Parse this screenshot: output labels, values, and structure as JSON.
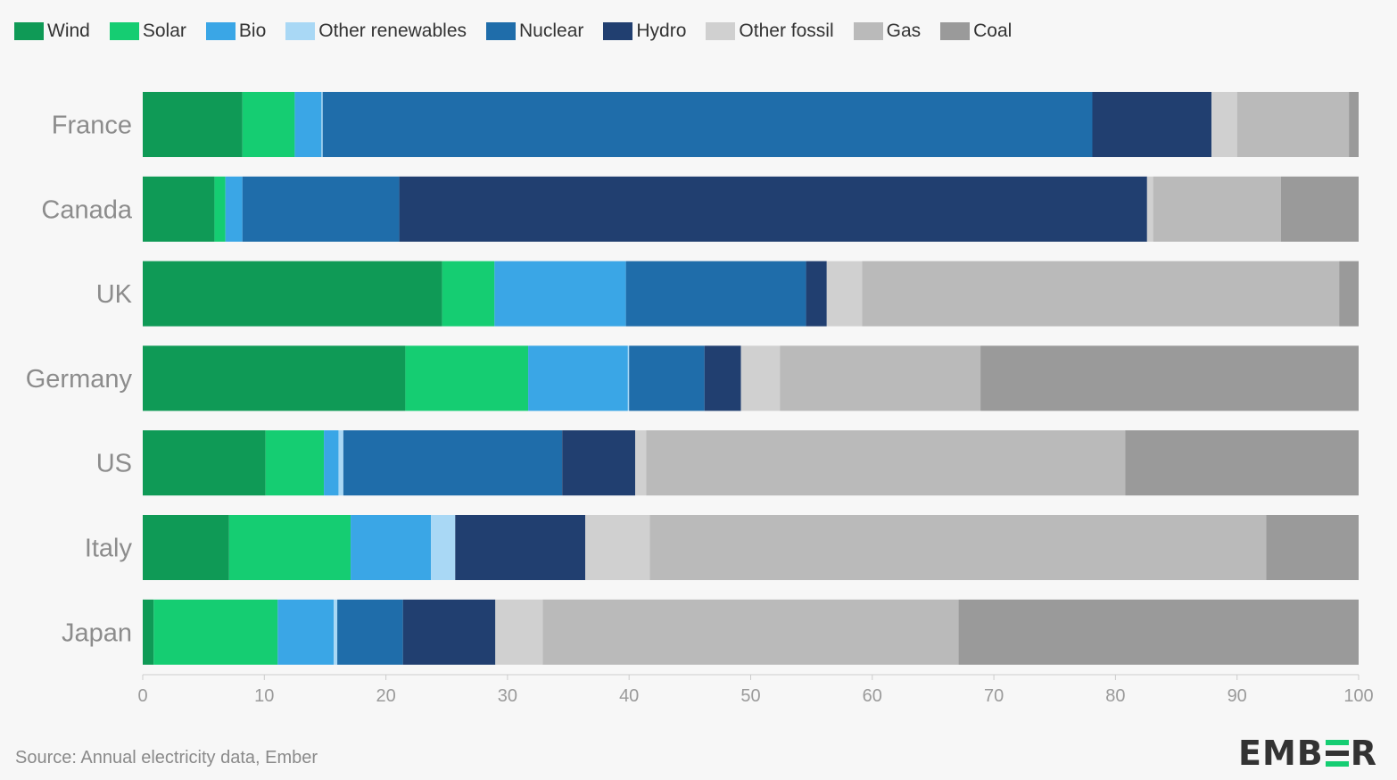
{
  "chart_data": {
    "type": "bar",
    "orientation": "horizontal",
    "stacked": true,
    "categories": [
      "France",
      "Canada",
      "UK",
      "Germany",
      "US",
      "Italy",
      "Japan"
    ],
    "series": [
      {
        "name": "Wind",
        "color": "#0f9a56",
        "values": [
          8.2,
          5.9,
          24.6,
          21.6,
          10.1,
          7.1,
          0.9
        ]
      },
      {
        "name": "Solar",
        "color": "#15cd72",
        "values": [
          4.3,
          0.9,
          4.3,
          10.1,
          4.8,
          10.0,
          10.2
        ]
      },
      {
        "name": "Bio",
        "color": "#3aa6e6",
        "values": [
          2.2,
          1.4,
          10.8,
          8.2,
          1.2,
          6.6,
          4.6
        ]
      },
      {
        "name": "Other renewables",
        "color": "#a9d8f5",
        "values": [
          0.1,
          0.0,
          0.0,
          0.1,
          0.4,
          2.0,
          0.3
        ]
      },
      {
        "name": "Nuclear",
        "color": "#1f6daa",
        "values": [
          63.3,
          12.9,
          14.8,
          6.2,
          18.0,
          0.0,
          5.4
        ]
      },
      {
        "name": "Hydro",
        "color": "#213f70",
        "values": [
          9.8,
          61.5,
          1.7,
          3.0,
          6.0,
          10.7,
          7.6
        ]
      },
      {
        "name": "Other fossil",
        "color": "#d0d0d0",
        "values": [
          2.1,
          0.5,
          2.9,
          3.2,
          0.9,
          5.3,
          3.9
        ]
      },
      {
        "name": "Gas",
        "color": "#bababa",
        "values": [
          9.2,
          10.5,
          39.2,
          16.5,
          39.4,
          50.7,
          34.2
        ]
      },
      {
        "name": "Coal",
        "color": "#9a9a9a",
        "values": [
          0.8,
          6.4,
          1.6,
          31.1,
          19.2,
          7.6,
          32.9
        ]
      }
    ],
    "xlim": [
      0,
      100
    ],
    "xticks": [
      0,
      10,
      20,
      30,
      40,
      50,
      60,
      70,
      80,
      90,
      100
    ],
    "legend": "top-left",
    "grid": false,
    "title": "",
    "xlabel": "",
    "ylabel": ""
  },
  "footer": {
    "source": "Source: Annual electricity data, Ember",
    "logo_left": "EMB",
    "logo_right": "R",
    "logo_bars_colors": [
      "#15cd72",
      "#333333",
      "#15cd72"
    ]
  }
}
